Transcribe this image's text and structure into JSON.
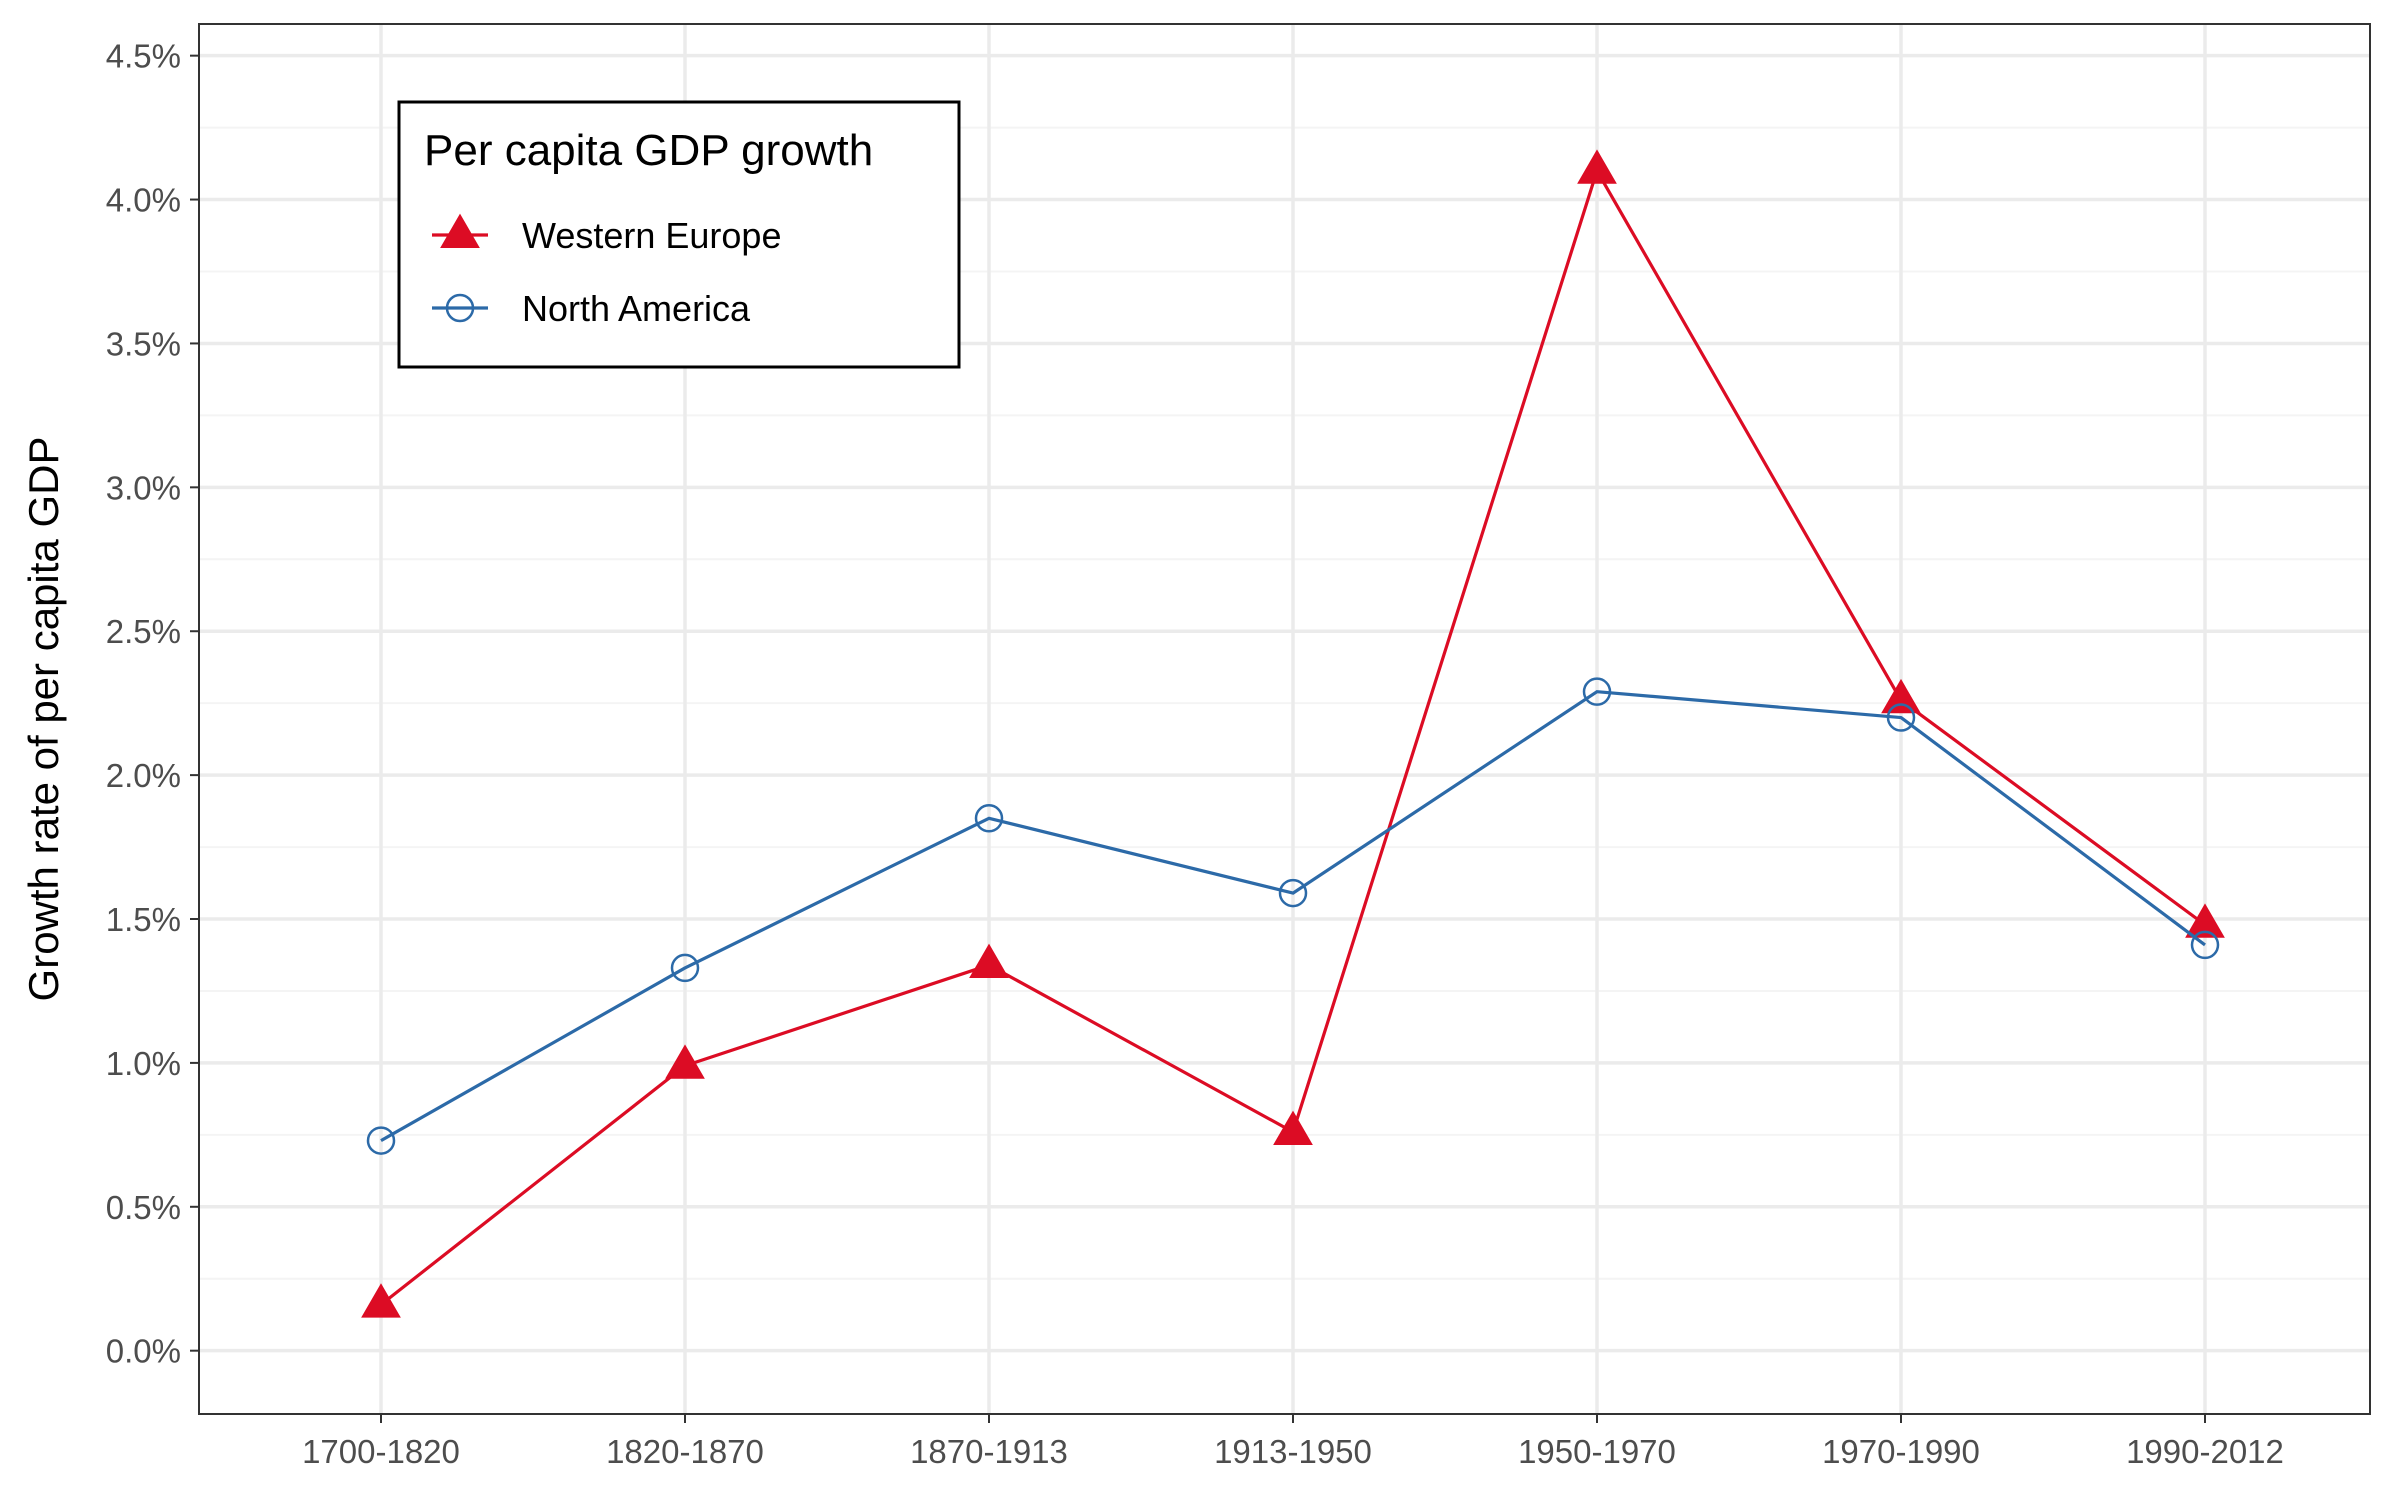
{
  "chart_data": {
    "type": "line",
    "title": "",
    "xlabel": "",
    "ylabel": "Growth rate of per capita GDP",
    "categories": [
      "1700-1820",
      "1820-1870",
      "1870-1913",
      "1913-1950",
      "1950-1970",
      "1970-1990",
      "1990-2012"
    ],
    "ylim": [
      -0.0022,
      0.0461
    ],
    "yticks": [
      0.0,
      0.005,
      0.01,
      0.015,
      0.02,
      0.025,
      0.03,
      0.035,
      0.04,
      0.045
    ],
    "ytick_labels": [
      "0.0%",
      "0.5%",
      "1.0%",
      "1.5%",
      "2.0%",
      "2.5%",
      "3.0%",
      "3.5%",
      "4.0%",
      "4.5%"
    ],
    "grid": true,
    "legend": {
      "title": "Per capita GDP growth",
      "position": "top-left"
    },
    "series": [
      {
        "name": "Western Europe",
        "marker": "filled-triangle",
        "color": "#dc0c24",
        "values": [
          0.0016,
          0.0099,
          0.0134,
          0.0076,
          0.041,
          0.0226,
          0.0148
        ]
      },
      {
        "name": "North America",
        "marker": "open-circle",
        "color": "#2c6aa8",
        "values": [
          0.0073,
          0.0133,
          0.0185,
          0.0159,
          0.0229,
          0.022,
          0.0141
        ]
      }
    ]
  },
  "colors": {
    "panel_border": "#333333",
    "grid_major": "#ebebeb",
    "grid_minor": "#f4f4f4",
    "tick_label": "#4d4d4d"
  }
}
